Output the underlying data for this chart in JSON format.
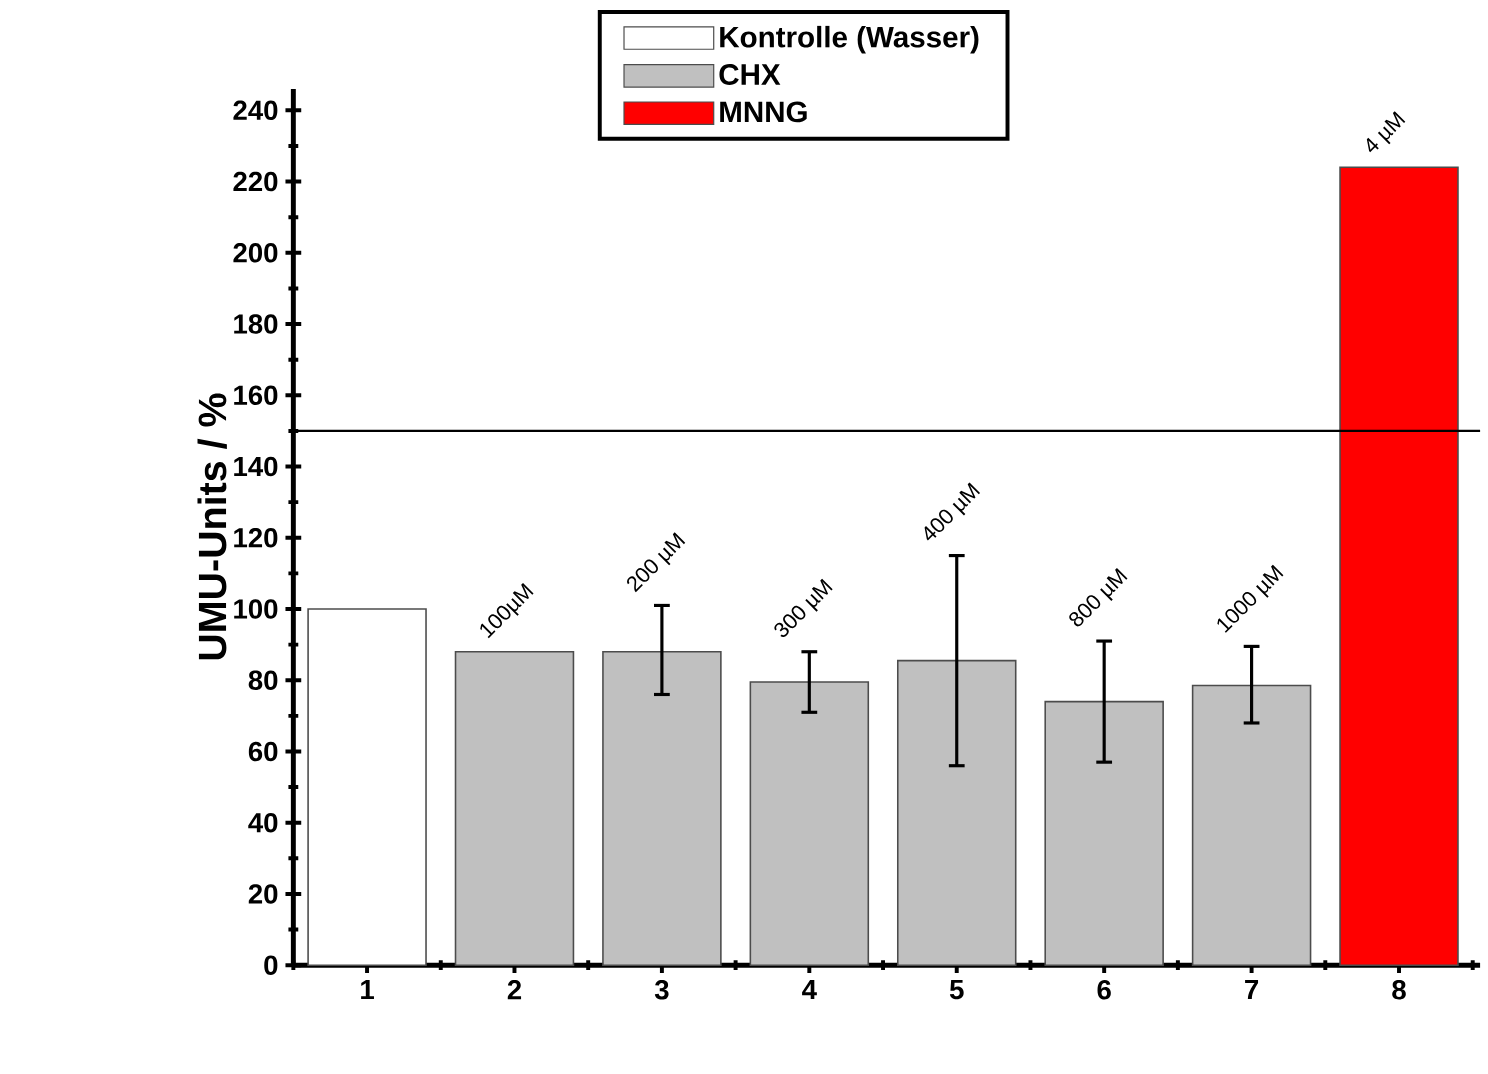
{
  "chart_data": {
    "type": "bar",
    "ylabel": "UMU-Units / %",
    "categories": [
      "1",
      "2",
      "3",
      "4",
      "5",
      "6",
      "7",
      "8"
    ],
    "series": [
      {
        "name": "Kontrolle (Wasser)",
        "color": "#ffffff",
        "values": [
          100,
          null,
          null,
          null,
          null,
          null,
          null,
          null
        ]
      },
      {
        "name": "CHX",
        "color": "#c0c0c0",
        "values": [
          null,
          88,
          88,
          79.5,
          85.5,
          74,
          78.5,
          null
        ],
        "errors": [
          null,
          null,
          [
            76,
            101
          ],
          [
            71,
            88
          ],
          [
            56,
            115
          ],
          [
            57,
            91
          ],
          [
            68,
            89.5
          ],
          null
        ]
      },
      {
        "name": "MNNG",
        "color": "#ff0000",
        "values": [
          null,
          null,
          null,
          null,
          null,
          null,
          null,
          224
        ]
      }
    ],
    "annotations": [
      {
        "text": "100µM",
        "x": "2",
        "y": 88
      },
      {
        "text": "200 µM",
        "x": "3",
        "y": 101
      },
      {
        "text": "300 µM",
        "x": "4",
        "y": 88
      },
      {
        "text": "400 µM",
        "x": "5",
        "y": 115
      },
      {
        "text": "800 µM",
        "x": "6",
        "y": 91
      },
      {
        "text": "1000 µM",
        "x": "7",
        "y": 89.5
      },
      {
        "text": "4 µM",
        "x": "8",
        "y": 224
      }
    ],
    "ylim": [
      0,
      246
    ],
    "yticks": [
      0,
      20,
      40,
      60,
      80,
      100,
      120,
      140,
      160,
      180,
      200,
      220,
      240
    ],
    "ref_lines": [
      {
        "axis": "y",
        "value": 150
      }
    ],
    "legend": "top",
    "grid": false
  }
}
